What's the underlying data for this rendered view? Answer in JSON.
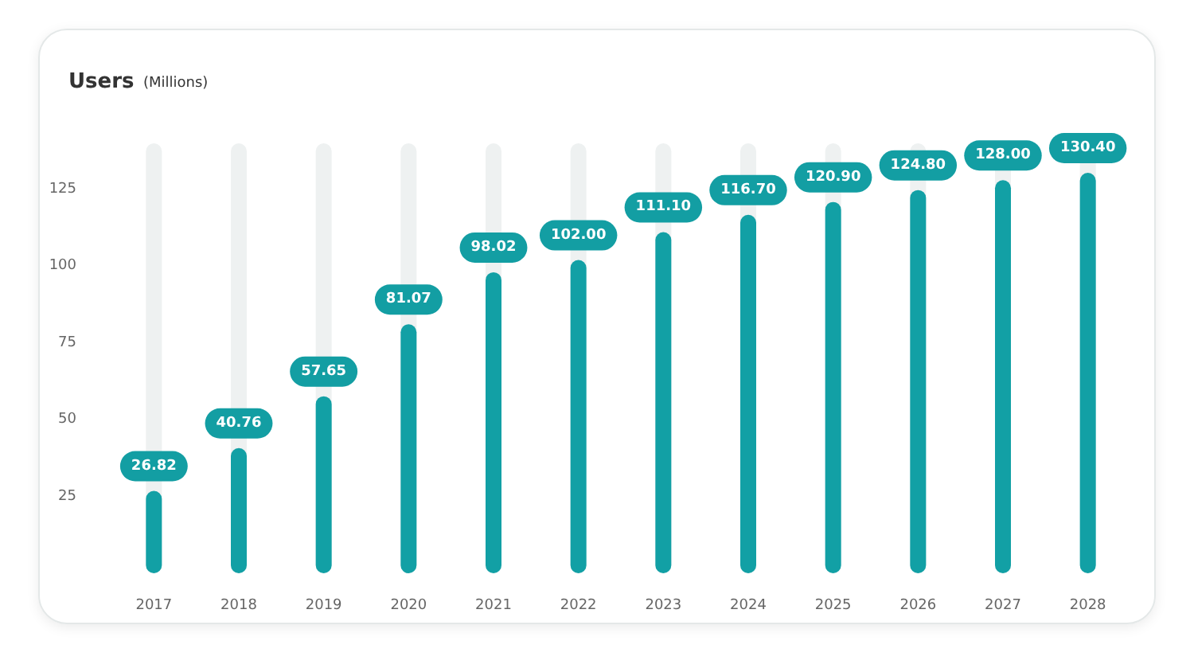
{
  "chart_data": {
    "type": "bar",
    "title": "Users",
    "subtitle": "(Millions)",
    "categories": [
      "2017",
      "2018",
      "2019",
      "2020",
      "2021",
      "2022",
      "2023",
      "2024",
      "2025",
      "2026",
      "2027",
      "2028"
    ],
    "values": [
      26.82,
      40.76,
      57.65,
      81.07,
      98.02,
      102.0,
      111.1,
      116.7,
      120.9,
      124.8,
      128.0,
      130.4
    ],
    "value_labels": [
      "26.82",
      "40.76",
      "57.65",
      "81.07",
      "98.02",
      "102.00",
      "111.10",
      "116.70",
      "120.90",
      "124.80",
      "128.00",
      "130.40"
    ],
    "color": "#12a0a5",
    "ylim": [
      0,
      140
    ],
    "yticks": [
      25,
      50,
      75,
      100,
      125
    ],
    "grid": false
  }
}
